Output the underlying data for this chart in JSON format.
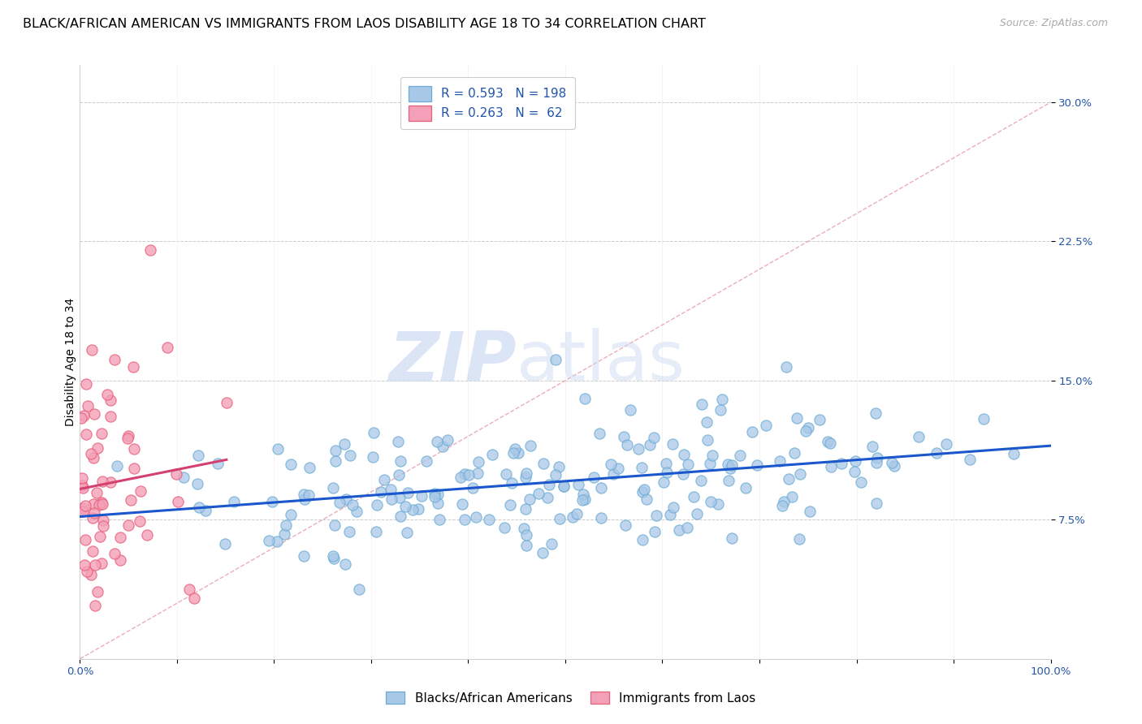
{
  "title": "BLACK/AFRICAN AMERICAN VS IMMIGRANTS FROM LAOS DISABILITY AGE 18 TO 34 CORRELATION CHART",
  "source": "Source: ZipAtlas.com",
  "ylabel": "Disability Age 18 to 34",
  "blue_R": 0.593,
  "blue_N": 198,
  "pink_R": 0.263,
  "pink_N": 62,
  "blue_dot_face": "#a8c8e8",
  "blue_dot_edge": "#6aaad4",
  "pink_dot_face": "#f4a0b8",
  "pink_dot_edge": "#e8607a",
  "trend_blue": "#1a56cc",
  "trend_pink": "#d44070",
  "diagonal_color": "#e8a0b0",
  "watermark_color": "#c8d8f0",
  "legend_label_blue": "Blacks/African Americans",
  "legend_label_pink": "Immigrants from Laos",
  "title_fontsize": 11.5,
  "axis_label_fontsize": 10,
  "tick_fontsize": 9.5,
  "legend_fontsize": 11,
  "source_fontsize": 9,
  "xlim": [
    0.0,
    1.0
  ],
  "ylim": [
    0.0,
    0.32
  ],
  "blue_seed": 123,
  "pink_seed": 77
}
